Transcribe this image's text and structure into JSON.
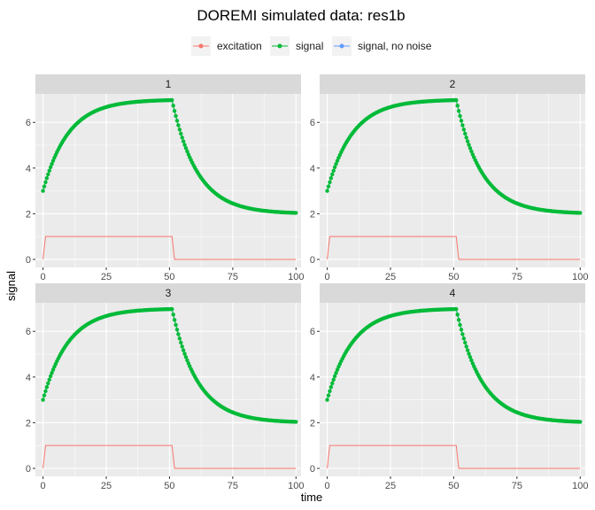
{
  "chart_data": {
    "type": "line",
    "title": "DOREMI simulated data: res1b",
    "xlabel": "time",
    "ylabel": "signal",
    "xlim": [
      -3,
      102
    ],
    "ylim": [
      -0.35,
      7.25
    ],
    "x_ticks": [
      0,
      25,
      50,
      75,
      100
    ],
    "y_ticks": [
      0,
      2,
      4,
      6
    ],
    "grid": true,
    "legend_position": "top",
    "legend": [
      {
        "name": "excitation",
        "color": "#F8766D"
      },
      {
        "name": "signal",
        "color": "#00BA38"
      },
      {
        "name": "signal, no noise",
        "color": "#619CFF"
      }
    ],
    "panels": [
      {
        "label": "1"
      },
      {
        "label": "2"
      },
      {
        "label": "3"
      },
      {
        "label": "4"
      }
    ],
    "excitation": {
      "x": [
        0,
        1,
        51,
        52,
        100
      ],
      "y": [
        0,
        1,
        1,
        0,
        0
      ]
    },
    "signal_model": {
      "rise": {
        "start_time": 0,
        "end_time": 51,
        "start_value": 3.0,
        "end_value": 7.0,
        "tau": 10
      },
      "decay": {
        "start_time": 51,
        "end_time": 100,
        "end_value": 2.0,
        "tau": 10
      },
      "time_step": 0.5
    }
  },
  "colors": {
    "panel_background": "#EBEBEB",
    "strip_background": "#D9D9D9",
    "grid_major": "#FFFFFF"
  }
}
